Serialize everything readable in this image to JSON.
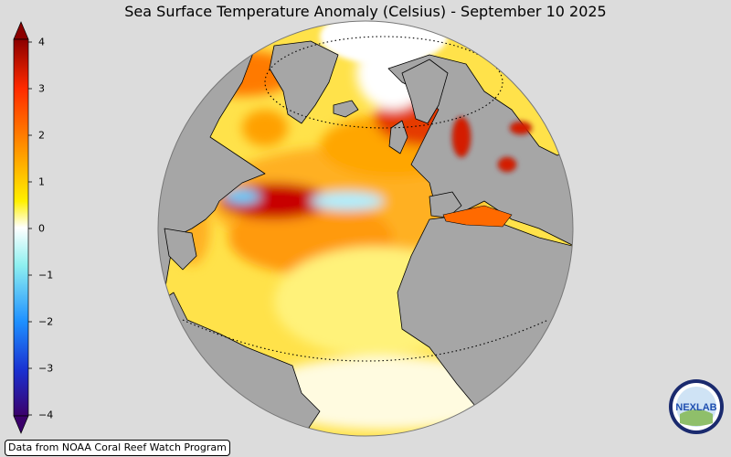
{
  "title": "Sea Surface Temperature Anomaly (Celsius) - September 10 2025",
  "colorbar": {
    "ticks": [
      "4",
      "3",
      "2",
      "1",
      "0",
      "−1",
      "−2",
      "−3",
      "−4"
    ],
    "range": [
      -4,
      4
    ],
    "colors": [
      "#3b006b",
      "#1a2fd0",
      "#1e90ff",
      "#7ff5f5",
      "#ffffff",
      "#fff200",
      "#ffa500",
      "#ff3300",
      "#8b0000"
    ]
  },
  "map": {
    "projection": "orthographic",
    "land_color": "#a6a6a6",
    "ocean_anomaly_colors": {
      "warm": "#ffd23f",
      "hot": "#ff7a00",
      "very_hot": "#c80000",
      "cool": "#ffffff",
      "cold": "#5ecfff"
    }
  },
  "credit": "Data from NOAA Coral Reef Watch Program",
  "logo": {
    "text": "NEXLAB",
    "icon": "nexlab-logo-icon"
  }
}
